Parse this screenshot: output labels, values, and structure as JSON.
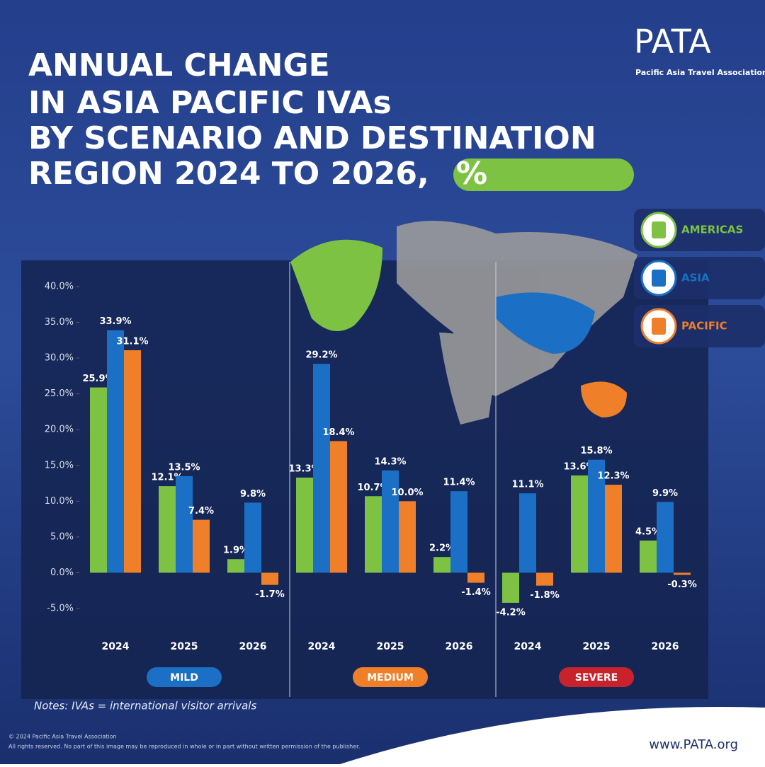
{
  "chart_data": {
    "type": "bar",
    "title_lines": [
      "ANNUAL CHANGE",
      "IN ASIA PACIFIC IVAs",
      "BY SCENARIO AND DESTINATION",
      "REGION 2024 TO 2026,"
    ],
    "title_highlight": "%",
    "categories": [
      "2024",
      "2025",
      "2026",
      "2024",
      "2025",
      "2026",
      "2024",
      "2025",
      "2026"
    ],
    "groups": [
      {
        "name": "MILD",
        "color": "#1b6fc4"
      },
      {
        "name": "MEDIUM",
        "color": "#f07f2a"
      },
      {
        "name": "SEVERE",
        "color": "#c8232c"
      }
    ],
    "series": [
      {
        "name": "AMERICAS",
        "color": "#7dc242",
        "values": [
          25.9,
          12.1,
          1.9,
          13.3,
          10.7,
          2.2,
          -4.2,
          13.6,
          4.5
        ],
        "value_labels": [
          "25.9%",
          "12.1%",
          "1.9%",
          "13.3%",
          "10.7%",
          "2.2%",
          "-4.2%",
          "13.6%",
          "4.5%"
        ]
      },
      {
        "name": "ASIA",
        "color": "#1b6fc4",
        "values": [
          33.9,
          13.5,
          9.8,
          29.2,
          14.3,
          11.4,
          11.1,
          15.8,
          9.9
        ],
        "value_labels": [
          "33.9%",
          "13.5%",
          "9.8%",
          "29.2%",
          "14.3%",
          "11.4%",
          "11.1%",
          "15.8%",
          "9.9%"
        ]
      },
      {
        "name": "PACIFIC",
        "color": "#f07f2a",
        "values": [
          31.1,
          7.4,
          -1.7,
          18.4,
          10.0,
          -1.4,
          -1.8,
          12.3,
          -0.3
        ],
        "value_labels": [
          "31.1%",
          "7.4%",
          "-1.7%",
          "18.4%",
          "10.0%",
          "-1.4%",
          "-1.8%",
          "12.3%",
          "-0.3%"
        ]
      }
    ],
    "ylim": [
      -5,
      40
    ],
    "yticks": [
      {
        "value": 40,
        "label": "40.0%"
      },
      {
        "value": 35,
        "label": "35.0%"
      },
      {
        "value": 30,
        "label": "30.0%"
      },
      {
        "value": 25,
        "label": "25.0%"
      },
      {
        "value": 20,
        "label": "20.0%"
      },
      {
        "value": 15,
        "label": "15.0%"
      },
      {
        "value": 10,
        "label": "10.0%"
      },
      {
        "value": 5,
        "label": "5.0%"
      },
      {
        "value": 0,
        "label": "0.0%"
      },
      {
        "value": -5,
        "label": "-5.0%"
      }
    ],
    "grid": false,
    "notes": "Notes: IVAs = international visitor arrivals",
    "logo": "PATA",
    "logo_subtitle": "Pacific Asia Travel Association",
    "copyright": "© 2024 Pacific Asia Travel Association",
    "rights": "All rights reserved. No part of this image may be reproduced in whole or in part without written permission of the publisher.",
    "website": "www.PATA.org"
  }
}
